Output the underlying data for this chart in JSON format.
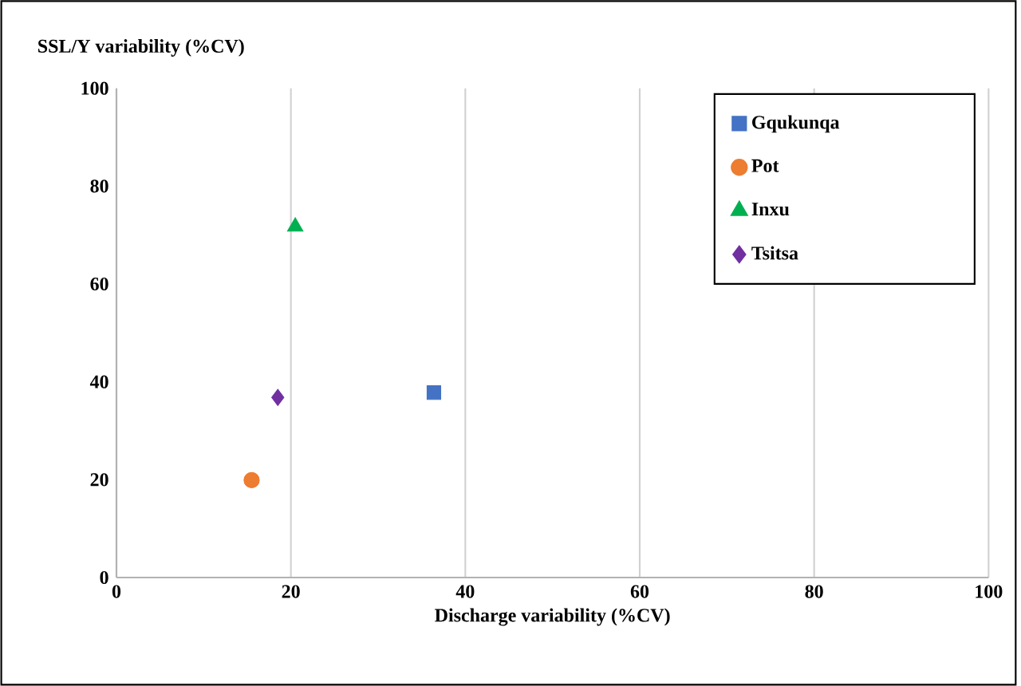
{
  "chart_data": {
    "type": "scatter",
    "xlabel": "Discharge variability (%CV)",
    "ylabel": "SSL/Y variability (%CV)",
    "xlim": [
      0,
      100
    ],
    "xticks": [
      0,
      20,
      40,
      60,
      80,
      100
    ],
    "ylim": [
      0,
      100
    ],
    "yticks": [
      0,
      20,
      40,
      60,
      80,
      100
    ],
    "grid": "x",
    "legend": "top right",
    "series": [
      {
        "name": "Gqukunqa",
        "color": "#4472c4",
        "marker": "square",
        "x": [
          36.4
        ],
        "values": [
          37.8
        ]
      },
      {
        "name": "Pot",
        "color": "#ed7d31",
        "marker": "circle",
        "x": [
          15.5
        ],
        "values": [
          19.9
        ]
      },
      {
        "name": "Inxu",
        "color": "#00b050",
        "marker": "triangle",
        "x": [
          20.5
        ],
        "values": [
          71.7
        ]
      },
      {
        "name": "Tsitsa",
        "color": "#7030a0",
        "marker": "diamond",
        "x": [
          18.5
        ],
        "values": [
          36.8
        ]
      }
    ]
  }
}
